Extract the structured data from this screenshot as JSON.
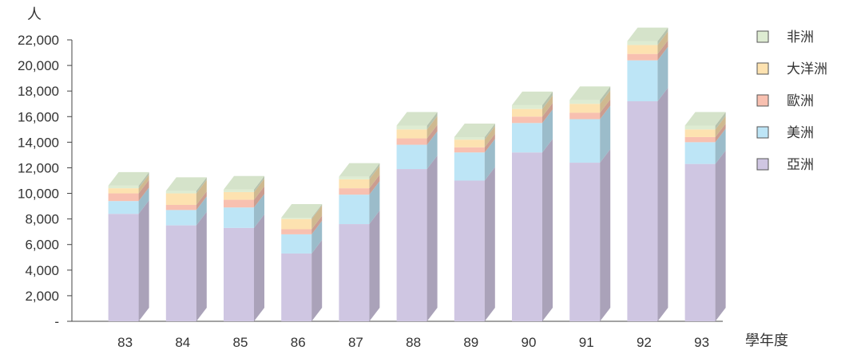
{
  "chart_data": {
    "type": "bar",
    "stacked": true,
    "style": "3d",
    "ylabel": "人",
    "xlabel": "學年度",
    "ylim": [
      0,
      22000
    ],
    "yticks": [
      0,
      2000,
      4000,
      6000,
      8000,
      10000,
      12000,
      14000,
      16000,
      18000,
      20000,
      22000
    ],
    "ytick_labels": [
      "-",
      "2,000",
      "4,000",
      "6,000",
      "8,000",
      "10,000",
      "12,000",
      "14,000",
      "16,000",
      "18,000",
      "20,000",
      "22,000"
    ],
    "categories": [
      "83",
      "84",
      "85",
      "86",
      "87",
      "88",
      "89",
      "90",
      "91",
      "92",
      "93"
    ],
    "legend_position": "right",
    "series": [
      {
        "name": "亞洲",
        "color": "#cfc6e2",
        "values": [
          8400,
          7500,
          7300,
          5300,
          7600,
          11900,
          11000,
          13200,
          12400,
          17200,
          12300
        ]
      },
      {
        "name": "美洲",
        "color": "#bde5f6",
        "values": [
          1000,
          1200,
          1600,
          1500,
          2300,
          1900,
          2200,
          2300,
          3400,
          3200,
          1700
        ]
      },
      {
        "name": "歐洲",
        "color": "#f8c0b0",
        "values": [
          600,
          400,
          600,
          400,
          500,
          500,
          400,
          500,
          500,
          500,
          400
        ]
      },
      {
        "name": "大洋洲",
        "color": "#fde2b0",
        "values": [
          400,
          900,
          600,
          800,
          700,
          700,
          600,
          600,
          700,
          700,
          600
        ]
      },
      {
        "name": "非洲",
        "color": "#deecd2",
        "values": [
          200,
          200,
          200,
          100,
          200,
          300,
          200,
          300,
          300,
          300,
          300
        ]
      }
    ]
  }
}
